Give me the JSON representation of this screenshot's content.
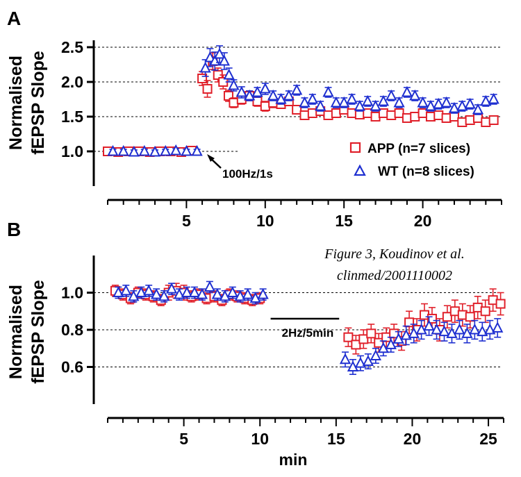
{
  "panels": [
    {
      "letter": "A",
      "chart_data": {
        "type": "scatter",
        "title": "",
        "xlabel": "",
        "ylabel": "Normalised fEPSP Slope",
        "xlim": [
          0,
          25
        ],
        "ylim": [
          0.5,
          2.6
        ],
        "xticks": [
          5,
          10,
          15,
          20
        ],
        "yticks": [
          1.0,
          1.5,
          2.0,
          2.5
        ],
        "y_tick_labels": [
          "1.0",
          "1.5",
          "2.0",
          "2.5"
        ],
        "grid_y": [
          1.0,
          1.5,
          2.0,
          2.5
        ],
        "annotation": "100Hz/1s",
        "series": [
          {
            "name": "APP (n=7 slices)",
            "marker": "square",
            "color": "#e0202a",
            "x": [
              0,
              0.67,
              1.33,
              2.0,
              2.67,
              3.33,
              4.0,
              4.67,
              5.33,
              6.0,
              6.33,
              6.67,
              7.0,
              7.33,
              7.67,
              8.0,
              8.5,
              9.0,
              9.5,
              10.0,
              10.5,
              11.0,
              11.5,
              12.0,
              12.5,
              13.0,
              13.5,
              14.0,
              14.5,
              15.0,
              15.5,
              16.0,
              16.5,
              17.0,
              17.5,
              18.0,
              18.5,
              19.0,
              19.5,
              20.0,
              20.5,
              21.0,
              21.5,
              22.0,
              22.5,
              23.0,
              23.5,
              24.0,
              24.5
            ],
            "y": [
              1.0,
              0.99,
              1.0,
              1.0,
              0.99,
              1.0,
              1.0,
              0.99,
              1.01,
              2.05,
              1.9,
              2.3,
              2.1,
              2.0,
              1.8,
              1.7,
              1.75,
              1.8,
              1.72,
              1.65,
              1.7,
              1.68,
              1.72,
              1.6,
              1.52,
              1.55,
              1.58,
              1.52,
              1.55,
              1.6,
              1.55,
              1.53,
              1.55,
              1.5,
              1.55,
              1.52,
              1.55,
              1.48,
              1.5,
              1.55,
              1.5,
              1.52,
              1.48,
              1.5,
              1.42,
              1.45,
              1.48,
              1.42,
              1.45
            ],
            "err": [
              0.03,
              0.03,
              0.03,
              0.03,
              0.03,
              0.03,
              0.03,
              0.03,
              0.03,
              0.1,
              0.12,
              0.12,
              0.1,
              0.1,
              0.08,
              0.07,
              0.07,
              0.07,
              0.07,
              0.07,
              0.07,
              0.06,
              0.06,
              0.06,
              0.06,
              0.06,
              0.06,
              0.06,
              0.06,
              0.06,
              0.06,
              0.06,
              0.06,
              0.06,
              0.06,
              0.06,
              0.06,
              0.06,
              0.06,
              0.06,
              0.06,
              0.06,
              0.06,
              0.06,
              0.06,
              0.06,
              0.06,
              0.06,
              0.06
            ]
          },
          {
            "name": "WT (n=8 slices)",
            "marker": "triangle",
            "color": "#1e2fd0",
            "x": [
              0.33,
              1.0,
              1.67,
              2.33,
              3.0,
              3.67,
              4.33,
              5.0,
              5.67,
              6.2,
              6.5,
              6.8,
              7.1,
              7.4,
              7.7,
              8.0,
              8.5,
              9.0,
              9.5,
              10.0,
              10.5,
              11.0,
              11.5,
              12.0,
              12.5,
              13.0,
              13.5,
              14.0,
              14.5,
              15.0,
              15.5,
              16.0,
              16.5,
              17.0,
              17.5,
              18.0,
              18.5,
              19.0,
              19.5,
              20.0,
              20.5,
              21.0,
              21.5,
              22.0,
              22.5,
              23.0,
              23.5,
              24.0,
              24.5
            ],
            "y": [
              1.0,
              1.0,
              0.99,
              1.0,
              0.99,
              1.0,
              1.01,
              1.0,
              1.0,
              2.2,
              2.35,
              2.3,
              2.4,
              2.3,
              2.1,
              1.95,
              1.85,
              1.8,
              1.85,
              1.9,
              1.8,
              1.75,
              1.8,
              1.88,
              1.7,
              1.75,
              1.65,
              1.85,
              1.7,
              1.7,
              1.75,
              1.65,
              1.72,
              1.65,
              1.72,
              1.8,
              1.7,
              1.85,
              1.8,
              1.7,
              1.65,
              1.68,
              1.7,
              1.62,
              1.65,
              1.68,
              1.6,
              1.72,
              1.75
            ],
            "err": [
              0.03,
              0.03,
              0.03,
              0.03,
              0.03,
              0.03,
              0.03,
              0.03,
              0.03,
              0.12,
              0.13,
              0.13,
              0.12,
              0.12,
              0.1,
              0.08,
              0.08,
              0.07,
              0.07,
              0.08,
              0.07,
              0.07,
              0.07,
              0.07,
              0.07,
              0.07,
              0.07,
              0.07,
              0.07,
              0.07,
              0.07,
              0.07,
              0.07,
              0.07,
              0.07,
              0.07,
              0.07,
              0.07,
              0.07,
              0.07,
              0.07,
              0.07,
              0.07,
              0.07,
              0.07,
              0.07,
              0.07,
              0.07,
              0.07
            ]
          }
        ]
      }
    },
    {
      "letter": "B",
      "chart_data": {
        "type": "scatter",
        "title": "",
        "xlabel": "min",
        "ylabel": "Normalised fEPSP Slope",
        "xlim": [
          0,
          26
        ],
        "ylim": [
          0.4,
          1.2
        ],
        "xticks": [
          5,
          10,
          15,
          20,
          25
        ],
        "yticks": [
          0.6,
          0.8,
          1.0
        ],
        "y_tick_labels": [
          "0.6",
          "0.8",
          "1.0"
        ],
        "grid_y": [
          0.6,
          0.8,
          1.0
        ],
        "annotation": "2Hz/5min",
        "annotation_range": [
          10.7,
          15.2
        ],
        "series": [
          {
            "name": "APP (n=7 slices)",
            "marker": "square",
            "color": "#e0202a",
            "x": [
              0.5,
              1.0,
              1.5,
              2.0,
              2.5,
              3.0,
              3.5,
              4.0,
              4.5,
              5.0,
              5.5,
              6.0,
              6.5,
              7.0,
              7.5,
              8.0,
              8.5,
              9.0,
              9.5,
              10.0,
              15.8,
              16.3,
              16.8,
              17.3,
              17.8,
              18.3,
              18.8,
              19.3,
              19.8,
              20.3,
              20.8,
              21.3,
              21.8,
              22.3,
              22.8,
              23.3,
              23.8,
              24.3,
              24.8,
              25.3,
              25.8
            ],
            "y": [
              1.01,
              0.99,
              0.97,
              1.0,
              0.99,
              0.98,
              0.96,
              1.0,
              1.01,
              1.0,
              0.98,
              0.99,
              0.97,
              0.98,
              0.96,
              0.99,
              0.98,
              0.97,
              0.96,
              0.97,
              0.76,
              0.72,
              0.75,
              0.78,
              0.73,
              0.76,
              0.78,
              0.74,
              0.84,
              0.8,
              0.88,
              0.86,
              0.8,
              0.87,
              0.9,
              0.88,
              0.87,
              0.92,
              0.9,
              0.96,
              0.94
            ],
            "err": [
              0.03,
              0.03,
              0.03,
              0.03,
              0.03,
              0.03,
              0.03,
              0.04,
              0.04,
              0.04,
              0.03,
              0.03,
              0.03,
              0.03,
              0.03,
              0.03,
              0.03,
              0.03,
              0.03,
              0.03,
              0.05,
              0.05,
              0.05,
              0.05,
              0.05,
              0.05,
              0.05,
              0.05,
              0.06,
              0.06,
              0.06,
              0.06,
              0.06,
              0.06,
              0.06,
              0.06,
              0.06,
              0.06,
              0.06,
              0.06,
              0.06
            ]
          },
          {
            "name": "WT (n=8 slices)",
            "marker": "triangle",
            "color": "#1e2fd0",
            "x": [
              0.7,
              1.2,
              1.7,
              2.2,
              2.7,
              3.2,
              3.7,
              4.2,
              4.7,
              5.2,
              5.7,
              6.2,
              6.7,
              7.2,
              7.7,
              8.2,
              8.7,
              9.2,
              9.7,
              10.2,
              15.6,
              16.1,
              16.6,
              17.1,
              17.6,
              18.1,
              18.6,
              19.1,
              19.6,
              20.1,
              20.6,
              21.1,
              21.6,
              22.1,
              22.6,
              23.1,
              23.6,
              24.1,
              24.6,
              25.1,
              25.6
            ],
            "y": [
              1.0,
              1.01,
              0.98,
              1.0,
              1.01,
              0.99,
              0.98,
              1.02,
              0.99,
              1.0,
              1.0,
              0.99,
              1.03,
              0.99,
              0.98,
              1.0,
              0.98,
              0.99,
              0.97,
              0.99,
              0.64,
              0.6,
              0.62,
              0.63,
              0.66,
              0.7,
              0.72,
              0.75,
              0.77,
              0.78,
              0.8,
              0.82,
              0.8,
              0.79,
              0.78,
              0.8,
              0.78,
              0.8,
              0.79,
              0.8,
              0.81
            ],
            "err": [
              0.03,
              0.03,
              0.03,
              0.03,
              0.03,
              0.03,
              0.03,
              0.03,
              0.03,
              0.03,
              0.03,
              0.03,
              0.03,
              0.03,
              0.03,
              0.03,
              0.03,
              0.03,
              0.03,
              0.03,
              0.04,
              0.04,
              0.04,
              0.04,
              0.04,
              0.04,
              0.04,
              0.04,
              0.05,
              0.05,
              0.05,
              0.05,
              0.05,
              0.05,
              0.05,
              0.05,
              0.05,
              0.05,
              0.05,
              0.05,
              0.05
            ]
          }
        ]
      }
    }
  ],
  "legend": {
    "app_label": "APP (n=7 slices)",
    "wt_label": "WT (n=8 slices)"
  },
  "ylabel_line1": "Normalised",
  "ylabel_line2": "fEPSP Slope",
  "caption": {
    "line1": "Figure 3, Koudinov et al.",
    "line2": "clinmed/2001110002"
  },
  "colors": {
    "app": "#e0202a",
    "wt": "#1e2fd0"
  }
}
